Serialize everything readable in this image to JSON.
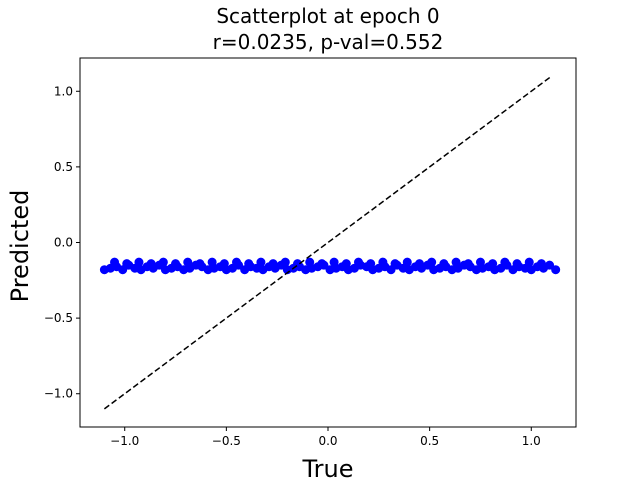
{
  "chart_data": {
    "type": "scatter",
    "title": "Scatterplot at epoch 0",
    "subtitle": "r=0.0235, p-val=0.552",
    "xlabel": "True",
    "ylabel": "Predicted",
    "xlim": [
      -1.22,
      1.22
    ],
    "ylim": [
      -1.22,
      1.22
    ],
    "xticks": [
      -1.0,
      -0.5,
      0.0,
      0.5,
      1.0
    ],
    "xtick_labels": [
      "−1.0",
      "−0.5",
      "0.0",
      "0.5",
      "1.0"
    ],
    "yticks": [
      -1.0,
      -0.5,
      0.0,
      0.5,
      1.0
    ],
    "ytick_labels": [
      "−1.0",
      "−0.5",
      "0.0",
      "0.5",
      "1.0"
    ],
    "grid": false,
    "series": [
      {
        "marker_color": "#0000ff",
        "x": [
          -1.1,
          -1.07,
          -1.04,
          -1.01,
          -0.98,
          -0.95,
          -0.92,
          -0.89,
          -0.86,
          -0.83,
          -0.8,
          -0.77,
          -0.74,
          -0.71,
          -0.68,
          -0.65,
          -0.62,
          -0.59,
          -0.56,
          -0.53,
          -0.5,
          -0.47,
          -0.44,
          -0.41,
          -0.38,
          -0.35,
          -0.32,
          -0.29,
          -0.26,
          -0.23,
          -0.2,
          -0.17,
          -0.14,
          -0.11,
          -0.08,
          -0.05,
          -0.02,
          0.01,
          0.04,
          0.07,
          0.1,
          0.13,
          0.16,
          0.19,
          0.22,
          0.25,
          0.28,
          0.31,
          0.34,
          0.37,
          0.4,
          0.43,
          0.46,
          0.49,
          0.52,
          0.55,
          0.58,
          0.61,
          0.64,
          0.67,
          0.7,
          0.73,
          0.76,
          0.79,
          0.82,
          0.85,
          0.88,
          0.91,
          0.94,
          0.97,
          1.0,
          1.03,
          1.06,
          1.09,
          1.12,
          -1.05,
          -0.99,
          -0.93,
          -0.87,
          -0.81,
          -0.75,
          -0.69,
          -0.63,
          -0.57,
          -0.51,
          -0.45,
          -0.39,
          -0.33,
          -0.27,
          -0.21,
          -0.15,
          -0.09,
          -0.03,
          0.03,
          0.09,
          0.15,
          0.21,
          0.27,
          0.33,
          0.39,
          0.45,
          0.51,
          0.57,
          0.63,
          0.69,
          0.75,
          0.81,
          0.87,
          0.93,
          0.99,
          1.05
        ],
        "y": [
          -0.18,
          -0.17,
          -0.16,
          -0.18,
          -0.15,
          -0.17,
          -0.18,
          -0.16,
          -0.17,
          -0.15,
          -0.18,
          -0.17,
          -0.16,
          -0.18,
          -0.17,
          -0.15,
          -0.16,
          -0.18,
          -0.17,
          -0.16,
          -0.18,
          -0.17,
          -0.15,
          -0.18,
          -0.16,
          -0.17,
          -0.18,
          -0.16,
          -0.17,
          -0.15,
          -0.18,
          -0.17,
          -0.16,
          -0.18,
          -0.17,
          -0.16,
          -0.15,
          -0.18,
          -0.17,
          -0.16,
          -0.18,
          -0.17,
          -0.15,
          -0.16,
          -0.18,
          -0.17,
          -0.16,
          -0.18,
          -0.15,
          -0.17,
          -0.18,
          -0.16,
          -0.17,
          -0.15,
          -0.18,
          -0.17,
          -0.16,
          -0.18,
          -0.17,
          -0.15,
          -0.16,
          -0.18,
          -0.17,
          -0.16,
          -0.18,
          -0.17,
          -0.15,
          -0.18,
          -0.16,
          -0.17,
          -0.18,
          -0.16,
          -0.17,
          -0.15,
          -0.18,
          -0.13,
          -0.14,
          -0.13,
          -0.14,
          -0.13,
          -0.14,
          -0.13,
          -0.14,
          -0.13,
          -0.14,
          -0.13,
          -0.14,
          -0.13,
          -0.14,
          -0.13,
          -0.14,
          -0.13,
          -0.14,
          -0.13,
          -0.14,
          -0.13,
          -0.14,
          -0.13,
          -0.14,
          -0.13,
          -0.14,
          -0.13,
          -0.14,
          -0.13,
          -0.14,
          -0.13,
          -0.14,
          -0.13,
          -0.14,
          -0.13,
          -0.14
        ]
      }
    ],
    "reference_line": {
      "x": [
        -1.1,
        1.1
      ],
      "y": [
        -1.1,
        1.1
      ],
      "style": "dashed",
      "color": "#000000"
    }
  }
}
